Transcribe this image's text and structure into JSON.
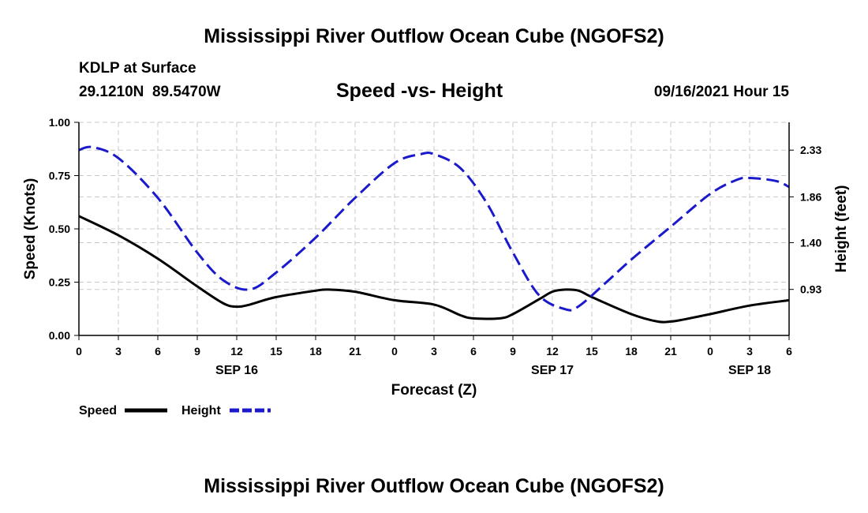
{
  "page": {
    "title_top": "Mississippi River Outflow Ocean Cube (NGOFS2)",
    "title_bottom": "Mississippi River Outflow Ocean Cube (NGOFS2)",
    "station_name": "KDLP at Surface",
    "station_coords": "29.1210N  89.5470W",
    "plot_subtitle": "Speed -vs- Height",
    "timestamp": "09/16/2021 Hour 15"
  },
  "chart_data": {
    "type": "line",
    "title": "Speed -vs- Height",
    "xlabel": "Forecast (Z)",
    "ylabel_left": "Speed (Knots)",
    "ylabel_right": "Height (feet)",
    "x_range": [
      0,
      54
    ],
    "x_ticks": [
      {
        "hours": 0,
        "label": "0"
      },
      {
        "hours": 3,
        "label": "3"
      },
      {
        "hours": 6,
        "label": "6"
      },
      {
        "hours": 9,
        "label": "9"
      },
      {
        "hours": 12,
        "label": "12"
      },
      {
        "hours": 15,
        "label": "15"
      },
      {
        "hours": 18,
        "label": "18"
      },
      {
        "hours": 21,
        "label": "21"
      },
      {
        "hours": 24,
        "label": "0"
      },
      {
        "hours": 27,
        "label": "3"
      },
      {
        "hours": 30,
        "label": "6"
      },
      {
        "hours": 33,
        "label": "9"
      },
      {
        "hours": 36,
        "label": "12"
      },
      {
        "hours": 39,
        "label": "15"
      },
      {
        "hours": 42,
        "label": "18"
      },
      {
        "hours": 45,
        "label": "21"
      },
      {
        "hours": 48,
        "label": "0"
      },
      {
        "hours": 51,
        "label": "3"
      },
      {
        "hours": 54,
        "label": "6"
      }
    ],
    "date_labels": [
      {
        "hours": 12,
        "label": "SEP 16"
      },
      {
        "hours": 36,
        "label": "SEP 17"
      },
      {
        "hours": 51,
        "label": "SEP 18"
      }
    ],
    "y_left_range": [
      0,
      1.0
    ],
    "y_left_ticks": [
      {
        "value": 0.0,
        "label": "0.00"
      },
      {
        "value": 0.25,
        "label": "0.25"
      },
      {
        "value": 0.5,
        "label": "0.50"
      },
      {
        "value": 0.75,
        "label": "0.75"
      },
      {
        "value": 1.0,
        "label": "1.00"
      }
    ],
    "y_right_range": [
      0.4675,
      2.6094
    ],
    "y_right_ticks": [
      {
        "value": 0.93,
        "label": "0.93"
      },
      {
        "value": 1.4,
        "label": "1.40"
      },
      {
        "value": 1.86,
        "label": "1.86"
      },
      {
        "value": 2.33,
        "label": "2.33"
      }
    ],
    "grid": true,
    "legend_position": "bottom-left",
    "series": [
      {
        "name": "Speed",
        "axis": "left",
        "color": "#000000",
        "dash": "solid",
        "x": [
          0,
          3,
          6,
          9,
          11,
          12,
          13,
          15,
          18,
          19,
          21,
          24,
          27,
          29,
          30,
          32,
          33,
          35,
          36,
          37,
          38,
          39,
          42,
          44,
          45,
          46,
          48,
          51,
          54
        ],
        "values": [
          0.56,
          0.47,
          0.36,
          0.23,
          0.15,
          0.135,
          0.145,
          0.18,
          0.21,
          0.215,
          0.205,
          0.165,
          0.145,
          0.095,
          0.08,
          0.08,
          0.1,
          0.17,
          0.205,
          0.215,
          0.21,
          0.18,
          0.1,
          0.065,
          0.065,
          0.075,
          0.1,
          0.14,
          0.165
        ]
      },
      {
        "name": "Height",
        "axis": "right",
        "color": "#1a1acc",
        "dash": "dashed",
        "x": [
          0,
          1,
          3,
          6,
          9,
          11,
          13,
          15,
          18,
          21,
          24,
          26,
          27,
          29,
          31,
          33,
          35,
          37,
          38,
          40,
          42,
          45,
          48,
          50,
          51,
          53,
          54
        ],
        "values": [
          2.33,
          2.36,
          2.25,
          1.85,
          1.3,
          1.02,
          0.93,
          1.1,
          1.45,
          1.85,
          2.2,
          2.29,
          2.29,
          2.15,
          1.8,
          1.3,
          0.87,
          0.73,
          0.76,
          0.99,
          1.23,
          1.56,
          1.89,
          2.03,
          2.05,
          2.02,
          1.96
        ]
      }
    ]
  }
}
